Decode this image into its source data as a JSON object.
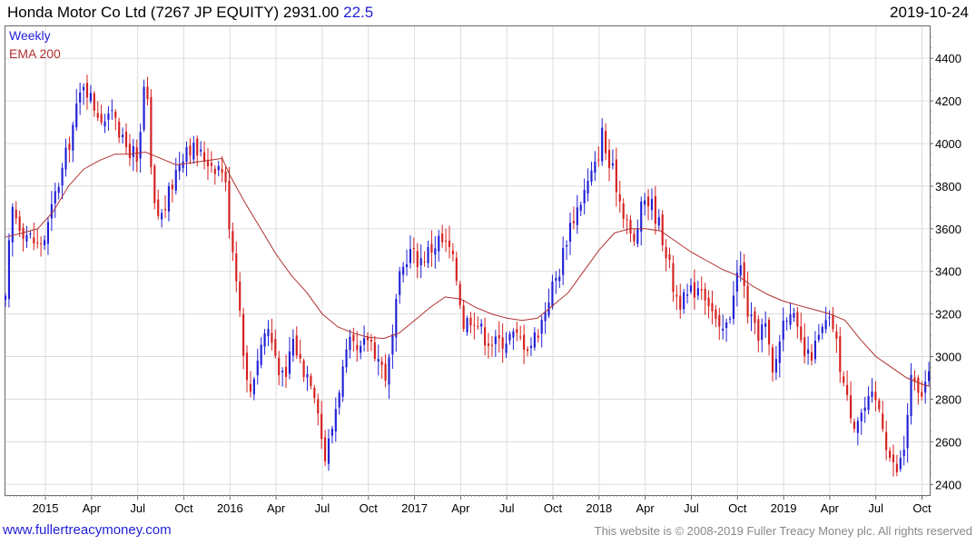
{
  "header": {
    "title": "Honda Motor Co Ltd (7267 JP EQUITY) 2931.00",
    "change": "22.5",
    "date": "2019-10-24"
  },
  "legend": {
    "weekly": "Weekly",
    "ema": "EMA 200"
  },
  "footer": {
    "website": "www.fullertreacymoney.com",
    "copyright": "This website is © 2008-2019 Fuller Treacy Money plc. All rights reserved"
  },
  "colors": {
    "up": "#1f1fd6",
    "down": "#d61f1f",
    "ema": "#b03030",
    "grid": "#dcdcdc"
  },
  "chart_data": {
    "type": "candlestick",
    "title": "Honda Motor Co Ltd (7267 JP EQUITY)",
    "period": "Weekly",
    "ylim": [
      2350,
      4550
    ],
    "yticks": [
      2400,
      2600,
      2800,
      3000,
      3200,
      3400,
      3600,
      3800,
      4000,
      4200,
      4400
    ],
    "xticks": [
      {
        "label": "2015",
        "t": 0.0
      },
      {
        "label": "Apr",
        "t": 3.0
      },
      {
        "label": "Jul",
        "t": 6.0
      },
      {
        "label": "Oct",
        "t": 9.0
      },
      {
        "label": "2016",
        "t": 12.0
      },
      {
        "label": "Apr",
        "t": 15.0
      },
      {
        "label": "Jul",
        "t": 18.0
      },
      {
        "label": "Oct",
        "t": 21.0
      },
      {
        "label": "2017",
        "t": 24.0
      },
      {
        "label": "Apr",
        "t": 27.0
      },
      {
        "label": "Jul",
        "t": 30.0
      },
      {
        "label": "Oct",
        "t": 33.0
      },
      {
        "label": "2018",
        "t": 36.0
      },
      {
        "label": "Apr",
        "t": 39.0
      },
      {
        "label": "Jul",
        "t": 42.0
      },
      {
        "label": "Oct",
        "t": 45.0
      },
      {
        "label": "2019",
        "t": 48.0
      },
      {
        "label": "Apr",
        "t": 51.0
      },
      {
        "label": "Jul",
        "t": 54.0
      },
      {
        "label": "Oct",
        "t": 57.0
      }
    ],
    "t_range": [
      -2.6,
      57.5
    ],
    "anchors": [
      [
        -2.6,
        3250
      ],
      [
        -2.2,
        3700
      ],
      [
        -1.5,
        3600
      ],
      [
        -0.5,
        3520
      ],
      [
        0.0,
        3560
      ],
      [
        0.6,
        3750
      ],
      [
        1.2,
        3900
      ],
      [
        2.0,
        4150
      ],
      [
        2.5,
        4300
      ],
      [
        3.0,
        4200
      ],
      [
        3.4,
        4150
      ],
      [
        4.1,
        4100
      ],
      [
        4.4,
        4200
      ],
      [
        5.0,
        4000
      ],
      [
        5.8,
        3950
      ],
      [
        6.0,
        3860
      ],
      [
        6.5,
        4350
      ],
      [
        7.0,
        3700
      ],
      [
        7.5,
        3650
      ],
      [
        8.0,
        3750
      ],
      [
        8.6,
        3900
      ],
      [
        9.2,
        4000
      ],
      [
        10.0,
        3950
      ],
      [
        11.0,
        3900
      ],
      [
        11.6,
        3880
      ],
      [
        12.0,
        3600
      ],
      [
        12.4,
        3400
      ],
      [
        12.8,
        3100
      ],
      [
        13.2,
        2800
      ],
      [
        13.8,
        3000
      ],
      [
        14.4,
        3150
      ],
      [
        15.0,
        3000
      ],
      [
        15.6,
        2850
      ],
      [
        16.0,
        3100
      ],
      [
        16.7,
        2950
      ],
      [
        17.3,
        2900
      ],
      [
        17.8,
        2750
      ],
      [
        18.1,
        2500
      ],
      [
        18.6,
        2650
      ],
      [
        19.2,
        2900
      ],
      [
        19.8,
        3050
      ],
      [
        20.4,
        3000
      ],
      [
        21.0,
        3100
      ],
      [
        21.6,
        3000
      ],
      [
        22.2,
        2900
      ],
      [
        22.6,
        3100
      ],
      [
        23.0,
        3350
      ],
      [
        23.6,
        3500
      ],
      [
        24.3,
        3450
      ],
      [
        25.0,
        3500
      ],
      [
        25.6,
        3550
      ],
      [
        26.3,
        3500
      ],
      [
        26.8,
        3350
      ],
      [
        27.2,
        3150
      ],
      [
        27.8,
        3200
      ],
      [
        28.5,
        3100
      ],
      [
        29.2,
        3060
      ],
      [
        29.8,
        3080
      ],
      [
        30.3,
        3100
      ],
      [
        30.9,
        3080
      ],
      [
        31.5,
        3050
      ],
      [
        32.2,
        3150
      ],
      [
        32.8,
        3300
      ],
      [
        33.4,
        3400
      ],
      [
        34.0,
        3600
      ],
      [
        34.6,
        3700
      ],
      [
        35.2,
        3800
      ],
      [
        35.8,
        3900
      ],
      [
        36.2,
        4050
      ],
      [
        36.6,
        3900
      ],
      [
        37.0,
        3850
      ],
      [
        37.4,
        3720
      ],
      [
        37.8,
        3650
      ],
      [
        38.2,
        3500
      ],
      [
        38.6,
        3650
      ],
      [
        39.0,
        3750
      ],
      [
        39.5,
        3700
      ],
      [
        40.0,
        3600
      ],
      [
        40.5,
        3450
      ],
      [
        40.9,
        3300
      ],
      [
        41.4,
        3250
      ],
      [
        42.0,
        3300
      ],
      [
        42.6,
        3350
      ],
      [
        43.2,
        3250
      ],
      [
        43.8,
        3100
      ],
      [
        44.4,
        3150
      ],
      [
        44.8,
        3350
      ],
      [
        45.2,
        3420
      ],
      [
        45.7,
        3200
      ],
      [
        46.2,
        3100
      ],
      [
        46.8,
        3150
      ],
      [
        47.3,
        2900
      ],
      [
        47.9,
        3150
      ],
      [
        48.4,
        3250
      ],
      [
        48.9,
        3100
      ],
      [
        49.5,
        2980
      ],
      [
        50.1,
        3050
      ],
      [
        50.7,
        3150
      ],
      [
        51.2,
        3150
      ],
      [
        51.7,
        2950
      ],
      [
        52.1,
        2800
      ],
      [
        52.6,
        2700
      ],
      [
        53.2,
        2750
      ],
      [
        53.8,
        2800
      ],
      [
        54.3,
        2750
      ],
      [
        54.8,
        2550
      ],
      [
        55.3,
        2450
      ],
      [
        55.8,
        2550
      ],
      [
        56.3,
        2900
      ],
      [
        56.8,
        2800
      ],
      [
        57.3,
        2880
      ],
      [
        57.5,
        2931
      ]
    ],
    "ema_200": [
      [
        -2.6,
        3560
      ],
      [
        -1.5,
        3580
      ],
      [
        -0.5,
        3600
      ],
      [
        0.5,
        3680
      ],
      [
        1.5,
        3800
      ],
      [
        2.5,
        3880
      ],
      [
        3.5,
        3920
      ],
      [
        4.5,
        3950
      ],
      [
        5.5,
        3950
      ],
      [
        6.5,
        3960
      ],
      [
        7.5,
        3930
      ],
      [
        8.5,
        3900
      ],
      [
        9.5,
        3910
      ],
      [
        10.5,
        3920
      ],
      [
        11.5,
        3930
      ],
      [
        12.0,
        3850
      ],
      [
        13.0,
        3720
      ],
      [
        14.0,
        3600
      ],
      [
        15.0,
        3480
      ],
      [
        16.0,
        3380
      ],
      [
        17.0,
        3300
      ],
      [
        18.0,
        3200
      ],
      [
        19.0,
        3140
      ],
      [
        20.0,
        3110
      ],
      [
        21.0,
        3090
      ],
      [
        22.0,
        3085
      ],
      [
        23.0,
        3110
      ],
      [
        24.0,
        3170
      ],
      [
        25.0,
        3230
      ],
      [
        26.0,
        3280
      ],
      [
        27.0,
        3270
      ],
      [
        28.0,
        3230
      ],
      [
        29.0,
        3200
      ],
      [
        30.0,
        3180
      ],
      [
        31.0,
        3170
      ],
      [
        32.0,
        3180
      ],
      [
        33.0,
        3240
      ],
      [
        34.0,
        3300
      ],
      [
        35.0,
        3400
      ],
      [
        36.0,
        3500
      ],
      [
        37.0,
        3580
      ],
      [
        38.0,
        3600
      ],
      [
        39.0,
        3600
      ],
      [
        40.0,
        3590
      ],
      [
        41.0,
        3540
      ],
      [
        42.0,
        3490
      ],
      [
        43.0,
        3450
      ],
      [
        44.0,
        3410
      ],
      [
        45.0,
        3380
      ],
      [
        46.0,
        3330
      ],
      [
        47.0,
        3290
      ],
      [
        48.0,
        3260
      ],
      [
        49.0,
        3240
      ],
      [
        50.0,
        3220
      ],
      [
        51.0,
        3200
      ],
      [
        52.0,
        3170
      ],
      [
        53.0,
        3080
      ],
      [
        54.0,
        3000
      ],
      [
        55.0,
        2950
      ],
      [
        56.0,
        2900
      ],
      [
        57.0,
        2870
      ],
      [
        57.5,
        2860
      ]
    ],
    "last_price": 2931.0,
    "change": 22.5
  }
}
